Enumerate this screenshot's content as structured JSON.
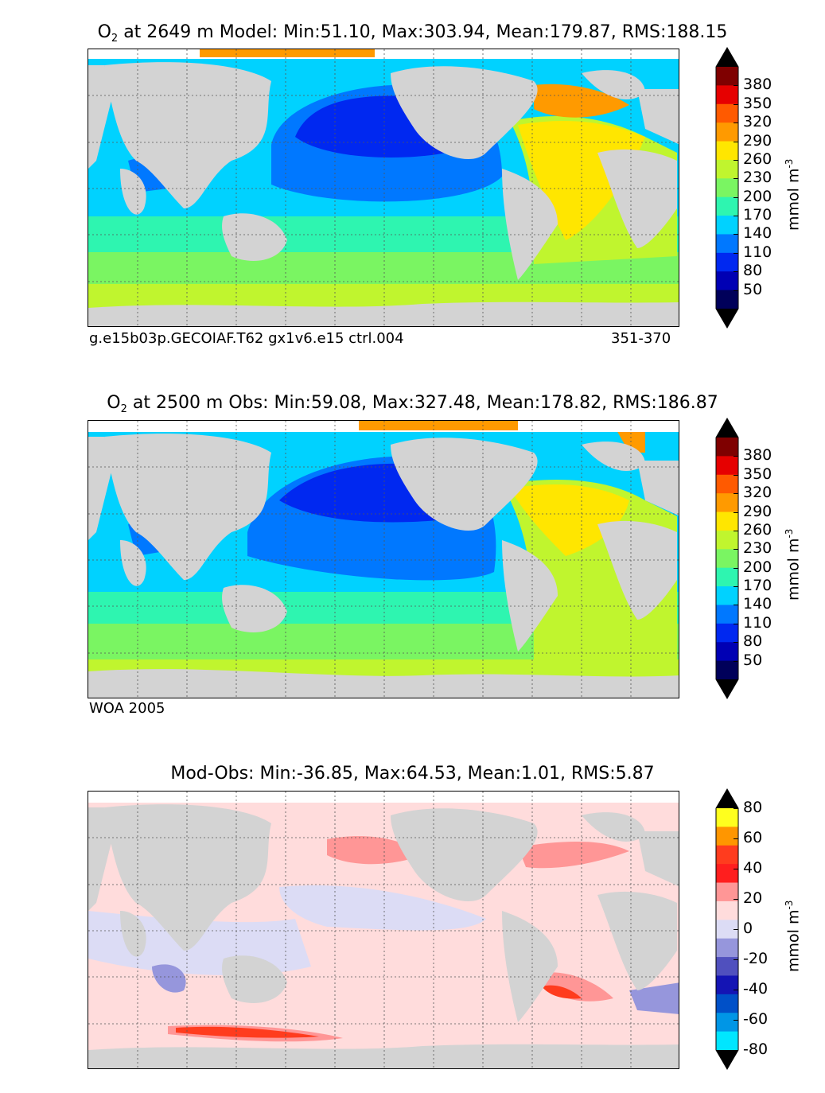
{
  "panels": [
    {
      "title_prefix": "O",
      "title_subscript": "2",
      "title_rest": " at 2649 m Model: Min:51.10, Max:303.94, Mean:179.87, RMS:188.15",
      "footer_left": "g.e15b03p.GECOIAF.T62 gx1v6.e15 ctrl.004",
      "footer_right": "351-370"
    },
    {
      "title_prefix": "O",
      "title_subscript": "2",
      "title_rest": " at 2500 m Obs: Min:59.08, Max:327.48, Mean:178.82, RMS:186.87",
      "footer_left": "WOA 2005",
      "footer_right": ""
    },
    {
      "title_prefix": "",
      "title_subscript": "",
      "title_rest": "Mod-Obs: Min:-36.85, Max:64.53, Mean:1.01, RMS:5.87",
      "footer_left": "",
      "footer_right": ""
    }
  ],
  "colorbars": {
    "oxygen": {
      "ticks": [
        "380",
        "350",
        "320",
        "290",
        "260",
        "230",
        "200",
        "170",
        "140",
        "110",
        "80",
        "50"
      ],
      "colors": [
        "#7f0000",
        "#e60000",
        "#ff5a00",
        "#ff9a00",
        "#ffe600",
        "#c0f52e",
        "#7af562",
        "#2ef5b0",
        "#00d2ff",
        "#0078ff",
        "#0028f0",
        "#0000b4",
        "#00005a"
      ],
      "top_arrow_color": "#000000",
      "bottom_arrow_color": "#000000",
      "label_text": "mmol m",
      "label_sup": "-3"
    },
    "diff": {
      "ticks": [
        "80",
        "60",
        "40",
        "20",
        "0",
        "-20",
        "-40",
        "-60",
        "-80"
      ],
      "colors": [
        "#ffff1e",
        "#ff9600",
        "#ff3c1e",
        "#ff1e1e",
        "#ff9696",
        "#ffdcdc",
        "#dcdcf5",
        "#9696dc",
        "#5050be",
        "#1414b4",
        "#0050c8",
        "#0096e6",
        "#00e6ff"
      ],
      "label_text": "mmol m",
      "label_sup": "-3"
    }
  },
  "colors": {
    "land": "#d3d3d3",
    "missing": "#ffffff",
    "grid": "#555555"
  }
}
